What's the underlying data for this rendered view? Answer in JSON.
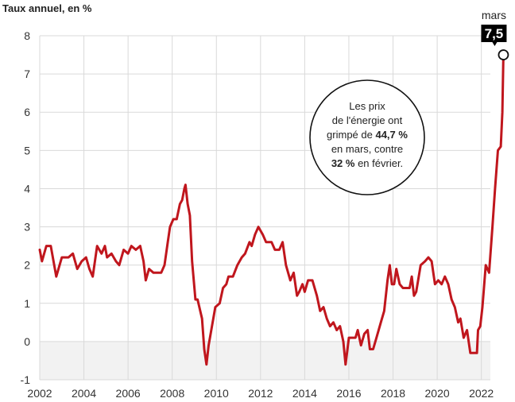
{
  "chart_data": {
    "type": "line",
    "ylabel": "Taux annuel, en %",
    "ylim": [
      -1,
      8
    ],
    "xlim": [
      2002,
      2022.3
    ],
    "y_ticks": [
      "-1",
      "0",
      "1",
      "2",
      "3",
      "4",
      "5",
      "6",
      "7",
      "8"
    ],
    "x_ticks": [
      "2002",
      "2004",
      "2006",
      "2008",
      "2010",
      "2012",
      "2014",
      "2016",
      "2018",
      "2020",
      "2022"
    ],
    "grid": true,
    "series": [
      {
        "color": "#c0161d",
        "points": [
          [
            2002.0,
            2.4
          ],
          [
            2002.1,
            2.1
          ],
          [
            2002.3,
            2.5
          ],
          [
            2002.5,
            2.5
          ],
          [
            2002.75,
            1.7
          ],
          [
            2003.0,
            2.2
          ],
          [
            2003.3,
            2.2
          ],
          [
            2003.5,
            2.3
          ],
          [
            2003.7,
            1.9
          ],
          [
            2003.9,
            2.1
          ],
          [
            2004.1,
            2.2
          ],
          [
            2004.25,
            1.9
          ],
          [
            2004.4,
            1.7
          ],
          [
            2004.6,
            2.5
          ],
          [
            2004.8,
            2.3
          ],
          [
            2004.95,
            2.5
          ],
          [
            2005.05,
            2.2
          ],
          [
            2005.25,
            2.3
          ],
          [
            2005.45,
            2.1
          ],
          [
            2005.6,
            2.0
          ],
          [
            2005.8,
            2.4
          ],
          [
            2006.0,
            2.3
          ],
          [
            2006.15,
            2.5
          ],
          [
            2006.35,
            2.4
          ],
          [
            2006.55,
            2.5
          ],
          [
            2006.7,
            2.1
          ],
          [
            2006.8,
            1.6
          ],
          [
            2006.95,
            1.9
          ],
          [
            2007.15,
            1.8
          ],
          [
            2007.35,
            1.8
          ],
          [
            2007.5,
            1.8
          ],
          [
            2007.65,
            2.0
          ],
          [
            2007.8,
            2.6
          ],
          [
            2007.9,
            3.0
          ],
          [
            2008.05,
            3.2
          ],
          [
            2008.2,
            3.2
          ],
          [
            2008.35,
            3.6
          ],
          [
            2008.45,
            3.7
          ],
          [
            2008.55,
            4.0
          ],
          [
            2008.6,
            4.1
          ],
          [
            2008.7,
            3.6
          ],
          [
            2008.8,
            3.3
          ],
          [
            2008.9,
            2.1
          ],
          [
            2009.05,
            1.1
          ],
          [
            2009.15,
            1.1
          ],
          [
            2009.35,
            0.6
          ],
          [
            2009.45,
            -0.2
          ],
          [
            2009.55,
            -0.6
          ],
          [
            2009.65,
            -0.1
          ],
          [
            2009.8,
            0.4
          ],
          [
            2009.95,
            0.9
          ],
          [
            2010.15,
            1.0
          ],
          [
            2010.3,
            1.4
          ],
          [
            2010.45,
            1.5
          ],
          [
            2010.55,
            1.7
          ],
          [
            2010.75,
            1.7
          ],
          [
            2010.95,
            2.0
          ],
          [
            2011.15,
            2.2
          ],
          [
            2011.3,
            2.3
          ],
          [
            2011.5,
            2.6
          ],
          [
            2011.6,
            2.5
          ],
          [
            2011.75,
            2.8
          ],
          [
            2011.9,
            3.0
          ],
          [
            2012.1,
            2.8
          ],
          [
            2012.25,
            2.6
          ],
          [
            2012.5,
            2.6
          ],
          [
            2012.65,
            2.4
          ],
          [
            2012.85,
            2.4
          ],
          [
            2013.0,
            2.6
          ],
          [
            2013.15,
            2.0
          ],
          [
            2013.35,
            1.6
          ],
          [
            2013.5,
            1.8
          ],
          [
            2013.65,
            1.2
          ],
          [
            2013.75,
            1.3
          ],
          [
            2013.9,
            1.5
          ],
          [
            2014.0,
            1.3
          ],
          [
            2014.15,
            1.6
          ],
          [
            2014.35,
            1.6
          ],
          [
            2014.55,
            1.2
          ],
          [
            2014.7,
            0.8
          ],
          [
            2014.85,
            0.9
          ],
          [
            2015.0,
            0.6
          ],
          [
            2015.15,
            0.4
          ],
          [
            2015.3,
            0.5
          ],
          [
            2015.45,
            0.3
          ],
          [
            2015.6,
            0.4
          ],
          [
            2015.75,
            0.0
          ],
          [
            2015.85,
            -0.6
          ],
          [
            2016.0,
            0.1
          ],
          [
            2016.15,
            0.1
          ],
          [
            2016.3,
            0.1
          ],
          [
            2016.4,
            0.3
          ],
          [
            2016.55,
            -0.1
          ],
          [
            2016.7,
            0.2
          ],
          [
            2016.85,
            0.3
          ],
          [
            2016.95,
            -0.2
          ],
          [
            2017.1,
            -0.2
          ],
          [
            2017.25,
            0.1
          ],
          [
            2017.45,
            0.5
          ],
          [
            2017.6,
            0.8
          ],
          [
            2017.75,
            1.6
          ],
          [
            2017.85,
            2.0
          ],
          [
            2017.95,
            1.5
          ],
          [
            2018.05,
            1.5
          ],
          [
            2018.15,
            1.9
          ],
          [
            2018.3,
            1.5
          ],
          [
            2018.45,
            1.4
          ],
          [
            2018.6,
            1.4
          ],
          [
            2018.75,
            1.4
          ],
          [
            2018.85,
            1.7
          ],
          [
            2018.95,
            1.2
          ],
          [
            2019.05,
            1.3
          ],
          [
            2019.25,
            2.0
          ],
          [
            2019.45,
            2.1
          ],
          [
            2019.6,
            2.2
          ],
          [
            2019.75,
            2.1
          ],
          [
            2019.9,
            1.5
          ],
          [
            2020.05,
            1.6
          ],
          [
            2020.2,
            1.5
          ],
          [
            2020.35,
            1.7
          ],
          [
            2020.5,
            1.5
          ],
          [
            2020.65,
            1.1
          ],
          [
            2020.8,
            0.9
          ],
          [
            2020.95,
            0.5
          ],
          [
            2021.05,
            0.6
          ],
          [
            2021.2,
            0.1
          ],
          [
            2021.35,
            0.3
          ],
          [
            2021.5,
            -0.3
          ],
          [
            2021.65,
            -0.3
          ],
          [
            2021.8,
            -0.3
          ],
          [
            2021.85,
            0.3
          ],
          [
            2021.95,
            0.4
          ],
          [
            2022.05,
            0.9
          ],
          [
            2022.2,
            2.0
          ],
          [
            2022.35,
            1.8
          ],
          [
            2022.5,
            3.0
          ],
          [
            2022.62,
            4.0
          ],
          [
            2022.75,
            5.0
          ],
          [
            2022.88,
            5.1
          ],
          [
            2022.95,
            6.0
          ],
          [
            2023.0,
            7.5
          ]
        ]
      }
    ],
    "last_point": {
      "label": "mars",
      "value": "7,5"
    },
    "annotation": {
      "lines": [
        [
          {
            "t": "Les prix",
            "b": false
          }
        ],
        [
          {
            "t": "de l'énergie ont",
            "b": false
          }
        ],
        [
          {
            "t": "grimpé de ",
            "b": false
          },
          {
            "t": "44,7 %",
            "b": true
          }
        ],
        [
          {
            "t": "en mars, contre",
            "b": false
          }
        ],
        [
          {
            "t": "32 %",
            "b": true
          },
          {
            "t": " en février.",
            "b": false
          }
        ]
      ]
    }
  },
  "colors": {
    "line": "#c0161d",
    "grid": "#d9d9d9",
    "negative_band": "#f2f2f2",
    "badge": "#000000"
  }
}
